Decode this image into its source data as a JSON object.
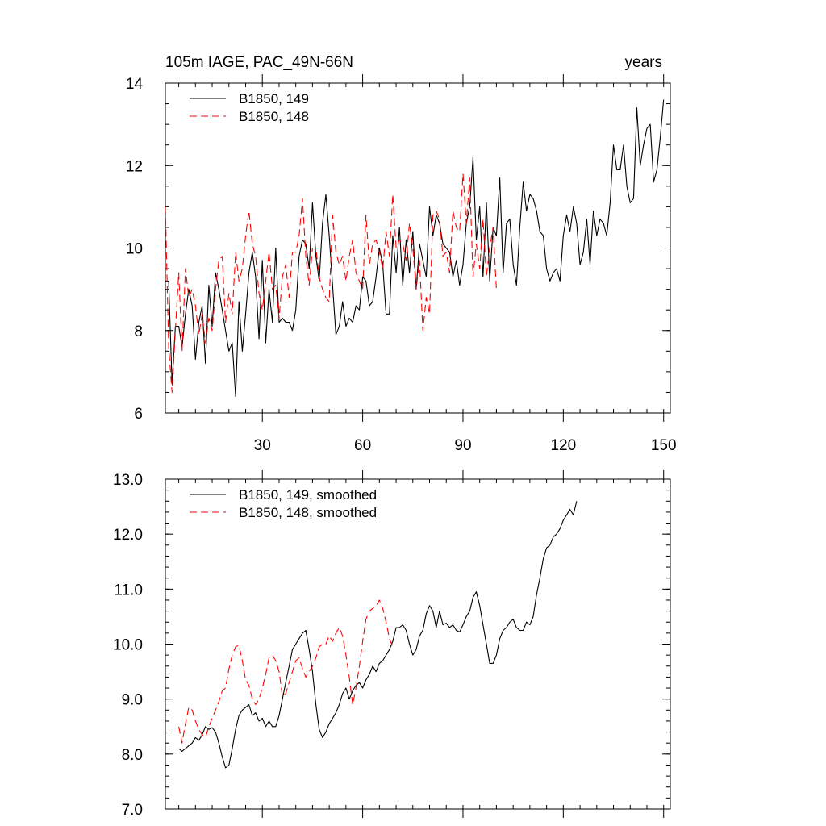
{
  "chart_data": [
    {
      "type": "line",
      "title": "105m IAGE, PAC_49N-66N",
      "title_right": "years",
      "xlabel": "",
      "ylabel": "",
      "xlim": [
        1,
        152
      ],
      "ylim": [
        6,
        14
      ],
      "x_ticks": [
        30,
        60,
        90,
        120,
        150
      ],
      "x_tick_labels": [
        "30",
        "60",
        "90",
        "120",
        "150"
      ],
      "y_ticks": [
        6,
        8,
        10,
        12,
        14
      ],
      "y_tick_labels": [
        "6",
        "8",
        "10",
        "12",
        "14"
      ],
      "grid": false,
      "legend_position": "top-left",
      "series": [
        {
          "name": "B1850, 149",
          "color": "#000000",
          "dash": "solid",
          "x_start": 1,
          "values": [
            9.2,
            9.2,
            6.7,
            8.1,
            8.1,
            7.6,
            8.4,
            9.0,
            8.6,
            7.3,
            8.2,
            8.6,
            7.2,
            9.1,
            8.1,
            9.4,
            9.0,
            8.5,
            8.0,
            7.5,
            7.7,
            6.4,
            8.7,
            7.5,
            8.4,
            9.4,
            9.9,
            9.3,
            7.8,
            9.7,
            7.7,
            9.0,
            8.2,
            10.0,
            8.2,
            8.3,
            8.2,
            8.2,
            8.0,
            8.5,
            9.8,
            10.2,
            10.1,
            9.5,
            11.1,
            9.8,
            9.2,
            10.6,
            11.3,
            10.3,
            9.1,
            7.9,
            8.1,
            8.7,
            8.1,
            8.3,
            8.2,
            8.6,
            8.5,
            9.3,
            9.2,
            8.6,
            8.7,
            9.3,
            10.0,
            9.6,
            8.4,
            8.4,
            10.3,
            9.4,
            10.5,
            9.1,
            10.2,
            9.4,
            10.4,
            9.0,
            10.1,
            9.7,
            9.3,
            11.0,
            10.3,
            10.8,
            10.6,
            10.1,
            10.0,
            9.9,
            9.3,
            9.7,
            9.1,
            9.6,
            10.6,
            11.0,
            12.2,
            10.2,
            11.0,
            9.3,
            11.1,
            9.2,
            10.5,
            10.3,
            11.7,
            9.4,
            10.6,
            10.7,
            9.6,
            9.1,
            10.5,
            11.6,
            10.9,
            11.3,
            11.2,
            10.9,
            10.4,
            10.3,
            9.5,
            9.2,
            9.4,
            9.5,
            9.2,
            10.3,
            10.8,
            10.4,
            11.0,
            10.6,
            9.6,
            9.9,
            10.7,
            9.6,
            10.9,
            10.3,
            10.7,
            10.6,
            10.3,
            11.1,
            12.5,
            11.9,
            11.9,
            12.5,
            11.5,
            11.1,
            11.2,
            13.4,
            12.0,
            12.5,
            12.9,
            13.0,
            11.6,
            11.9,
            12.7,
            13.6
          ]
        },
        {
          "name": "B1850, 148",
          "color": "#ff0000",
          "dash": "dashed",
          "x_start": 1,
          "values": [
            11.0,
            7.6,
            6.5,
            8.0,
            9.4,
            7.5,
            9.5,
            8.8,
            9.0,
            8.6,
            7.9,
            8.4,
            7.7,
            8.3,
            8.0,
            9.0,
            9.7,
            9.8,
            8.2,
            8.9,
            8.4,
            9.9,
            9.2,
            9.5,
            10.3,
            10.9,
            10.1,
            9.8,
            8.9,
            8.5,
            9.2,
            9.9,
            9.0,
            9.1,
            8.3,
            9.3,
            9.6,
            8.8,
            9.9,
            9.9,
            10.3,
            11.2,
            9.8,
            9.1,
            10.0,
            10.0,
            9.3,
            9.0,
            8.8,
            8.7,
            10.8,
            9.9,
            9.6,
            9.8,
            9.2,
            9.8,
            10.2,
            9.4,
            9.2,
            9.0,
            10.8,
            9.6,
            10.1,
            10.2,
            9.9,
            9.5,
            10.4,
            9.8,
            11.3,
            10.0,
            10.2,
            10.1,
            9.7,
            10.6,
            10.0,
            9.0,
            9.7,
            8.0,
            8.8,
            8.4,
            10.8,
            10.9,
            10.7,
            9.8,
            9.9,
            9.4,
            10.9,
            10.5,
            10.4,
            11.8,
            10.6,
            11.7,
            9.3,
            10.1,
            9.5,
            10.7,
            9.3,
            10.0,
            10.5,
            9.0
          ]
        }
      ]
    },
    {
      "type": "line",
      "title": "",
      "xlabel": "",
      "ylabel": "",
      "xlim": [
        1,
        152
      ],
      "ylim": [
        7.0,
        13.0
      ],
      "x_ticks": [
        30,
        60,
        90,
        120,
        150
      ],
      "x_tick_labels": [],
      "y_ticks": [
        7.0,
        8.0,
        9.0,
        10.0,
        11.0,
        12.0,
        13.0
      ],
      "y_tick_labels": [
        "7.0",
        "8.0",
        "9.0",
        "10.0",
        "11.0",
        "12.0",
        "13.0"
      ],
      "grid": false,
      "legend_position": "top-left",
      "series": [
        {
          "name": "B1850, 149, smoothed",
          "color": "#000000",
          "dash": "solid",
          "x_start": 5,
          "values": [
            8.1,
            8.05,
            8.1,
            8.15,
            8.2,
            8.3,
            8.25,
            8.35,
            8.5,
            8.45,
            8.48,
            8.4,
            8.2,
            7.95,
            7.75,
            7.8,
            8.1,
            8.45,
            8.7,
            8.8,
            8.85,
            8.9,
            8.7,
            8.75,
            8.6,
            8.65,
            8.5,
            8.6,
            8.5,
            8.5,
            8.7,
            9.0,
            9.3,
            9.6,
            9.9,
            10.0,
            10.1,
            10.2,
            10.25,
            9.9,
            9.5,
            8.9,
            8.45,
            8.3,
            8.4,
            8.55,
            8.65,
            8.75,
            8.9,
            9.1,
            9.2,
            9.0,
            9.15,
            9.25,
            9.3,
            9.2,
            9.35,
            9.45,
            9.6,
            9.5,
            9.65,
            9.7,
            9.8,
            9.9,
            10.05,
            10.3,
            10.3,
            10.35,
            10.25,
            10.0,
            9.8,
            9.9,
            10.15,
            10.25,
            10.55,
            10.7,
            10.6,
            10.3,
            10.6,
            10.35,
            10.38,
            10.3,
            10.35,
            10.25,
            10.22,
            10.35,
            10.5,
            10.6,
            10.85,
            10.95,
            10.7,
            10.35,
            10.0,
            9.65,
            9.65,
            9.8,
            10.1,
            10.25,
            10.3,
            10.4,
            10.45,
            10.3,
            10.25,
            10.25,
            10.4,
            10.35,
            10.5,
            10.9,
            11.2,
            11.55,
            11.75,
            11.8,
            11.95,
            12.0,
            12.1,
            12.25,
            12.35,
            12.45,
            12.35,
            12.6
          ]
        },
        {
          "name": "B1850, 148, smoothed",
          "color": "#ff0000",
          "dash": "dashed",
          "x_start": 5,
          "values": [
            8.5,
            8.2,
            8.55,
            8.85,
            8.8,
            8.6,
            8.45,
            8.35,
            8.3,
            8.5,
            8.65,
            8.8,
            8.95,
            9.15,
            9.2,
            9.55,
            9.8,
            9.95,
            9.98,
            9.7,
            9.35,
            9.25,
            9.0,
            8.9,
            9.0,
            9.2,
            9.45,
            9.75,
            9.8,
            9.7,
            9.5,
            9.05,
            9.1,
            9.3,
            9.5,
            9.7,
            9.75,
            9.55,
            9.4,
            9.5,
            9.6,
            9.75,
            9.95,
            10.0,
            10.0,
            10.15,
            10.05,
            10.2,
            10.3,
            10.15,
            9.8,
            9.4,
            8.9,
            9.2,
            9.6,
            10.05,
            10.45,
            10.6,
            10.65,
            10.7,
            10.8,
            10.65,
            10.4,
            10.1,
            9.95
          ]
        }
      ]
    }
  ]
}
